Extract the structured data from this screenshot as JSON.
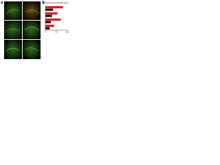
{
  "panels": {
    "a": "A",
    "b": "B"
  },
  "chart_data": {
    "type": "hbar",
    "title": "Fluorescence intensity (AU)",
    "categories": [
      null,
      null,
      null,
      null
    ],
    "series": [
      {
        "color": "#d62020",
        "values": [
          80,
          55,
          70,
          40
        ]
      },
      {
        "color": "#111111",
        "values": [
          35,
          30,
          25,
          20
        ]
      }
    ],
    "xlim": [
      0,
      100
    ],
    "xticks": [
      0,
      50,
      100
    ]
  }
}
